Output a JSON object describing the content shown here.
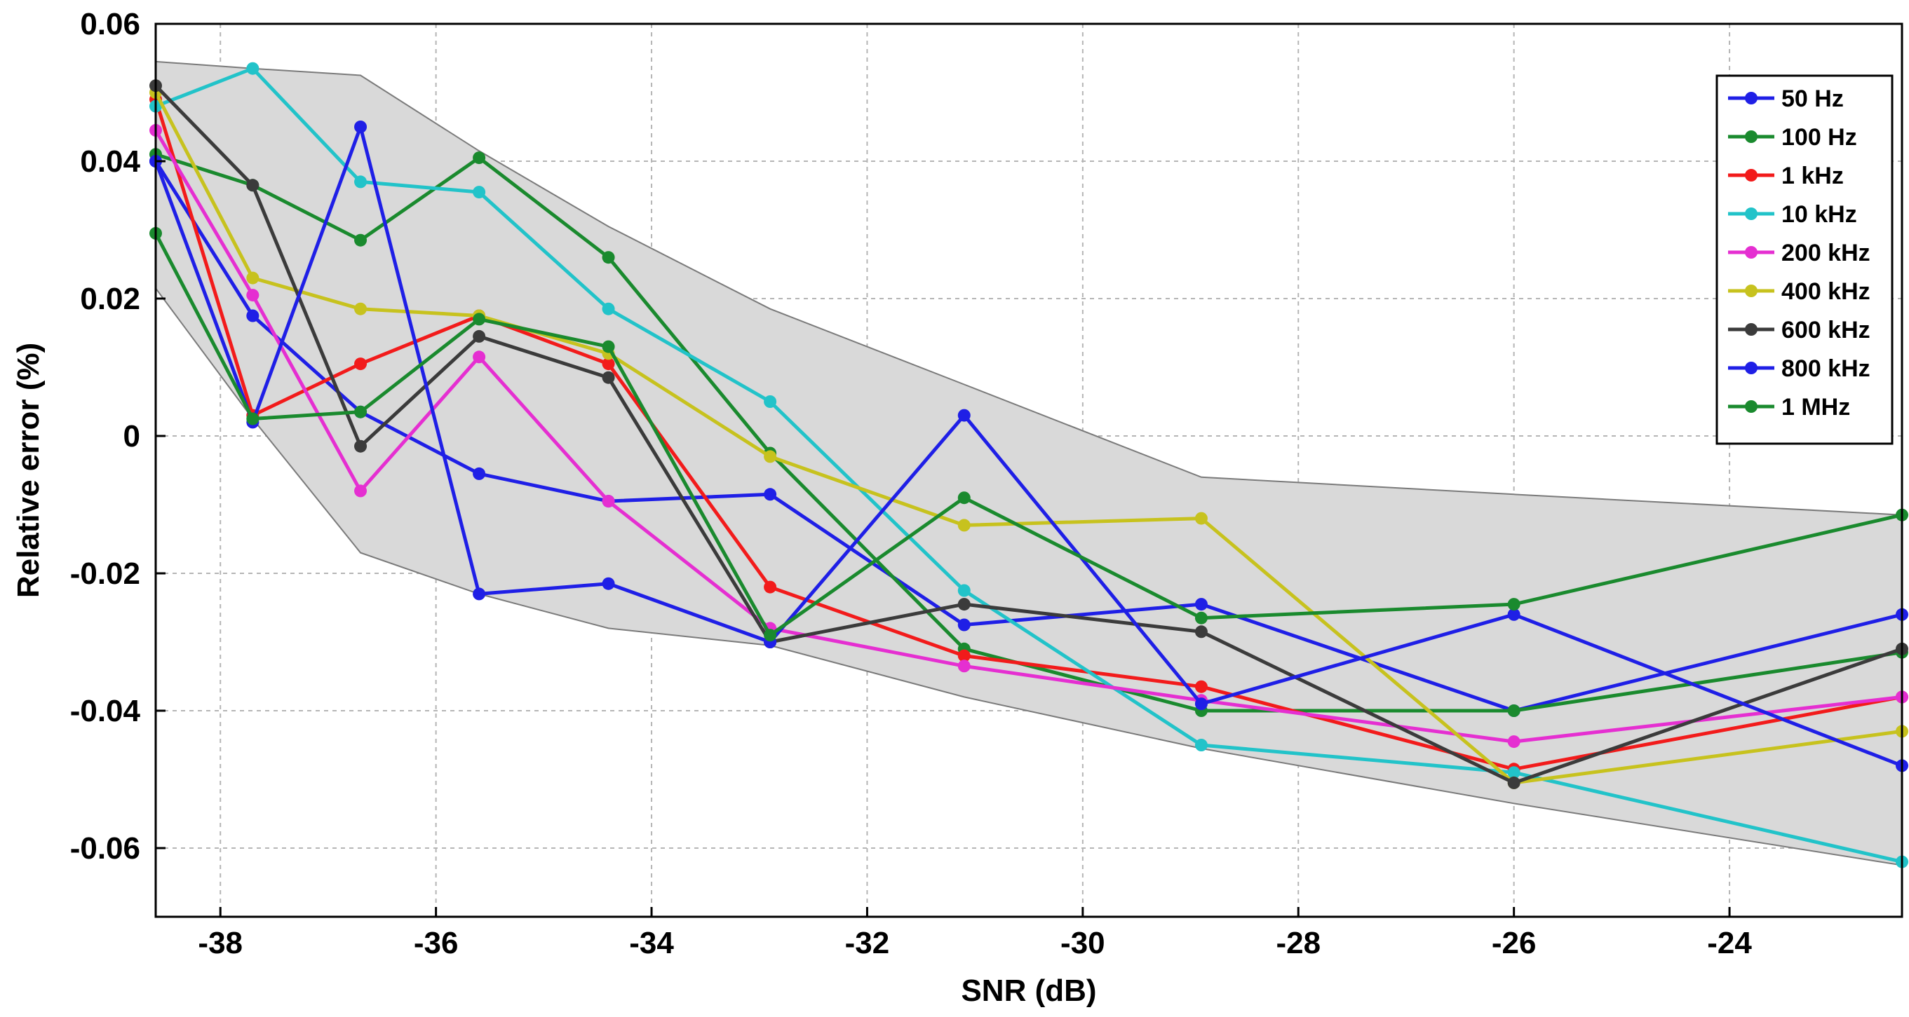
{
  "chart_data": {
    "type": "line",
    "title": "",
    "xlabel": "SNR (dB)",
    "ylabel": "Relative error (%)",
    "xlim": [
      -38.6,
      -22.4
    ],
    "ylim": [
      -0.07,
      0.06
    ],
    "xticks": [
      -38,
      -36,
      -34,
      -32,
      -30,
      -28,
      -26,
      -24
    ],
    "xtick_labels": [
      "-38",
      "-36",
      "-34",
      "-32",
      "-30",
      "-28",
      "-26",
      "-24"
    ],
    "yticks": [
      -0.06,
      -0.04,
      -0.02,
      0,
      0.02,
      0.04,
      0.06
    ],
    "ytick_labels": [
      "-0.06",
      "-0.04",
      "-0.02",
      "0",
      "0.02",
      "0.04",
      "0.06"
    ],
    "grid": true,
    "legend_position": "top-right",
    "x": [
      -38.6,
      -37.7,
      -36.7,
      -35.6,
      -34.4,
      -32.9,
      -31.1,
      -28.9,
      -26.0,
      -22.4
    ],
    "envelope": {
      "color": "#d9d9d9",
      "upper": [
        0.0545,
        0.0535,
        0.0525,
        0.0415,
        0.0305,
        0.0185,
        0.0075,
        -0.006,
        -0.0085,
        -0.0115
      ],
      "lower": [
        0.0215,
        0.0025,
        -0.017,
        -0.023,
        -0.028,
        -0.0305,
        -0.038,
        -0.0455,
        -0.0535,
        -0.0625
      ]
    },
    "series": [
      {
        "name": "50 Hz",
        "color": "#1f1fe6",
        "values": [
          0.04,
          0.0175,
          0.0035,
          -0.0055,
          -0.0095,
          -0.0085,
          -0.0275,
          -0.0245,
          -0.04,
          -0.026
        ]
      },
      {
        "name": "100 Hz",
        "color": "#1a8a2e",
        "values": [
          0.041,
          0.0365,
          0.0285,
          0.0405,
          0.026,
          -0.0025,
          -0.031,
          -0.04,
          -0.04,
          -0.0315
        ]
      },
      {
        "name": "1 kHz",
        "color": "#f21b1b",
        "values": [
          0.049,
          0.003,
          0.0105,
          0.0175,
          0.0105,
          -0.022,
          -0.032,
          -0.0365,
          -0.0485,
          -0.038
        ]
      },
      {
        "name": "10 kHz",
        "color": "#22c3c9",
        "values": [
          0.048,
          0.0535,
          0.037,
          0.0355,
          0.0185,
          0.005,
          -0.0225,
          -0.045,
          -0.049,
          -0.062
        ]
      },
      {
        "name": "200 kHz",
        "color": "#e52fd1",
        "values": [
          0.0445,
          0.0205,
          -0.008,
          0.0115,
          -0.0095,
          -0.028,
          -0.0335,
          -0.0385,
          -0.0445,
          -0.038
        ]
      },
      {
        "name": "400 kHz",
        "color": "#c7c21e",
        "values": [
          0.05,
          0.023,
          0.0185,
          0.0175,
          0.012,
          -0.003,
          -0.013,
          -0.012,
          -0.0505,
          -0.043
        ]
      },
      {
        "name": "600 kHz",
        "color": "#3b3b3b",
        "values": [
          0.051,
          0.0365,
          -0.0015,
          0.0145,
          0.0085,
          -0.03,
          -0.0245,
          -0.0285,
          -0.0505,
          -0.031
        ]
      },
      {
        "name": "800 kHz",
        "color": "#1f1fe6",
        "values": [
          0.04,
          0.002,
          0.045,
          -0.023,
          -0.0215,
          -0.03,
          0.003,
          -0.039,
          -0.026,
          -0.048
        ]
      },
      {
        "name": "1 MHz",
        "color": "#1a8a2e",
        "values": [
          0.0295,
          0.0025,
          0.0035,
          0.017,
          0.013,
          -0.029,
          -0.009,
          -0.0265,
          -0.0245,
          -0.0115
        ]
      }
    ]
  }
}
